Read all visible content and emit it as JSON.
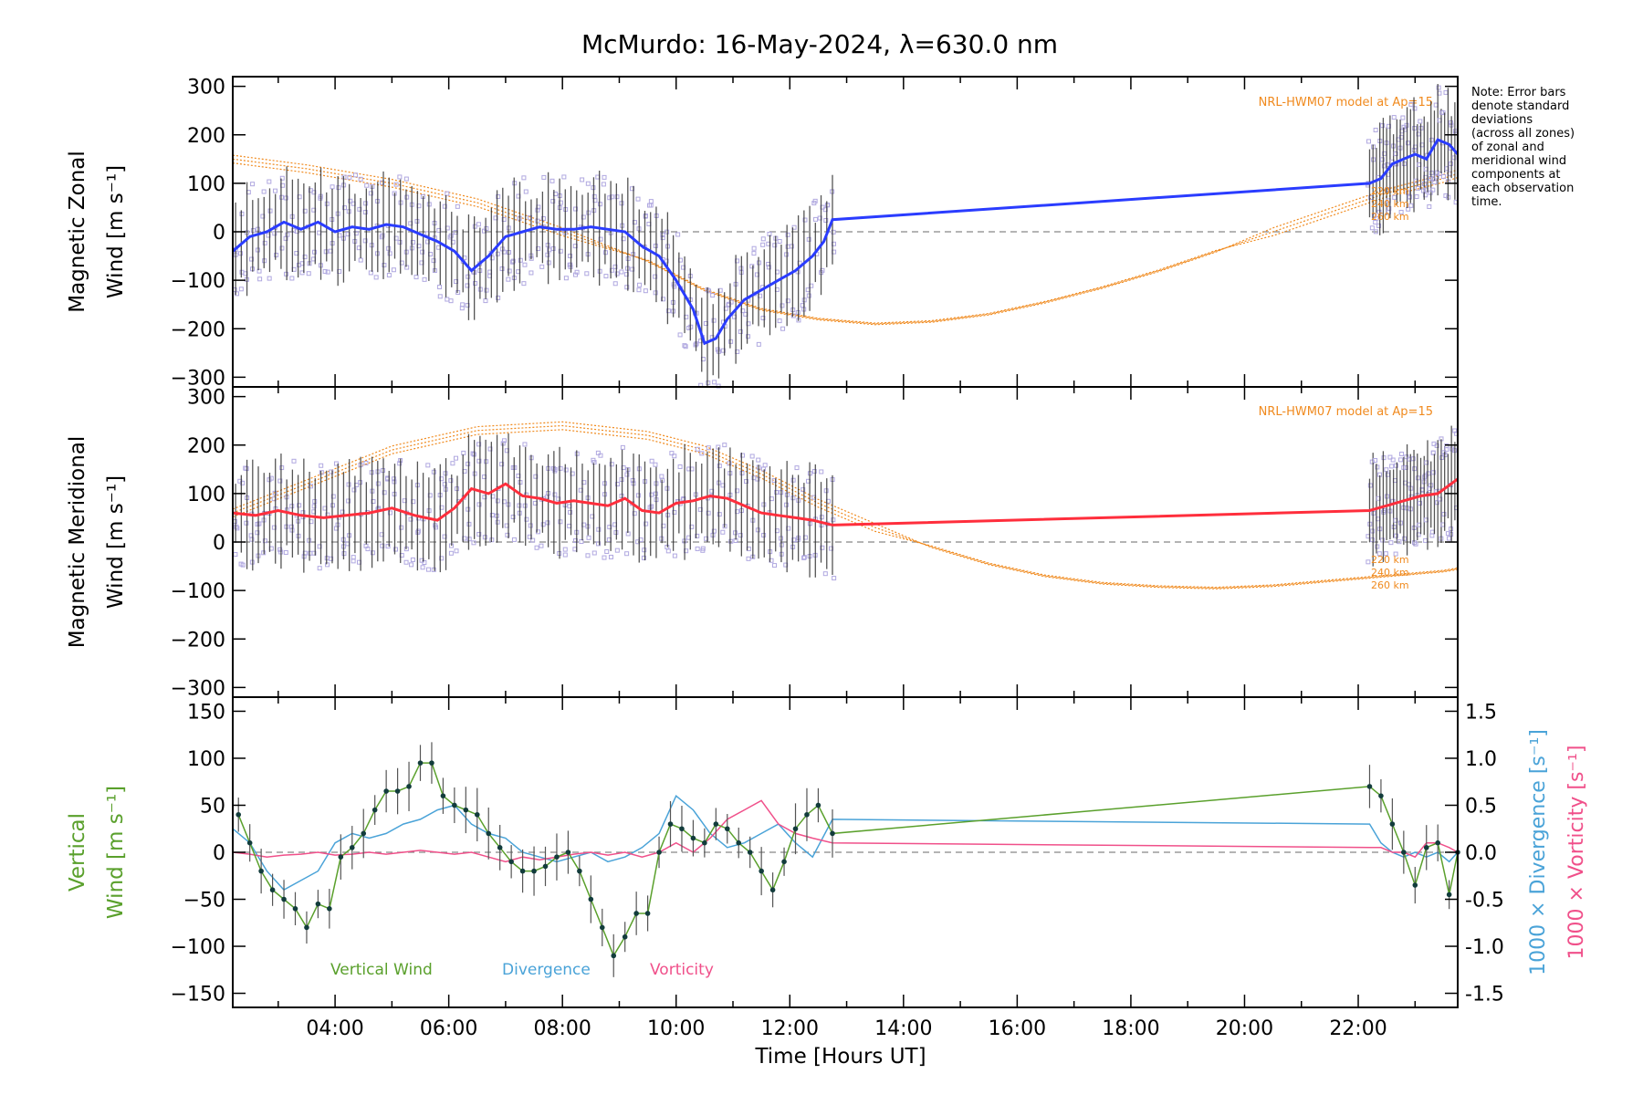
{
  "title": "McMurdo: 16-May-2024, λ=630.0 nm",
  "xlabel": "Time [Hours UT]",
  "note_lines": [
    "Note: Error bars",
    "denote standard",
    "deviations",
    "(across all zones)",
    "of zonal and",
    "meridional wind",
    "components at",
    "each observation",
    "time."
  ],
  "model_label": "NRL-HWM07 model at Ap=15",
  "altitude_labels": [
    "220 km",
    "240 km",
    "260 km"
  ],
  "colors": {
    "zonal": "#2a3cff",
    "meridional": "#ff2e3c",
    "model": "#f08a1e",
    "vertical": "#5aa02c",
    "divergence": "#4aa3d8",
    "vorticity": "#f0508a",
    "scatter": "#b0a8e0",
    "errorbar": "#2b2b2b",
    "zero": "#888888"
  },
  "chart_data": [
    {
      "type": "line",
      "id": "zonal",
      "ylabel_lines": [
        "Magnetic Zonal",
        "Wind [m s⁻¹]"
      ],
      "ylim": [
        -320,
        320
      ],
      "yticks": [
        -300,
        -200,
        -100,
        0,
        100,
        200,
        300
      ],
      "xlim": [
        2.2,
        23.75
      ],
      "xtick_labels": [
        "04:00",
        "06:00",
        "08:00",
        "10:00",
        "12:00",
        "14:00",
        "16:00",
        "18:00",
        "20:00",
        "22:00"
      ],
      "xtick_hours": [
        4,
        6,
        8,
        10,
        12,
        14,
        16,
        18,
        20,
        22
      ],
      "series": [
        {
          "x": [
            2.2,
            2.5,
            2.8,
            3.1,
            3.4,
            3.7,
            4.0,
            4.3,
            4.6,
            4.9,
            5.2,
            5.5,
            5.8,
            6.1,
            6.4,
            6.7,
            7.0,
            7.3,
            7.6,
            7.9,
            8.2,
            8.5,
            8.8,
            9.1,
            9.4,
            9.7,
            10.0,
            10.3,
            10.5,
            10.7,
            10.9,
            11.2,
            11.5,
            11.8,
            12.1,
            12.4,
            12.6,
            12.75,
            22.2,
            22.4,
            22.6,
            22.8,
            23.0,
            23.2,
            23.4,
            23.6,
            23.75
          ],
          "values": [
            -40,
            -10,
            0,
            20,
            5,
            20,
            0,
            10,
            5,
            15,
            10,
            -5,
            -20,
            -40,
            -80,
            -50,
            -10,
            0,
            10,
            5,
            5,
            10,
            5,
            0,
            -30,
            -50,
            -100,
            -160,
            -230,
            -220,
            -180,
            -140,
            -120,
            -100,
            -80,
            -50,
            -20,
            25,
            100,
            110,
            140,
            150,
            160,
            150,
            190,
            180,
            160
          ]
        },
        {
          "x": [
            2.2,
            3.5,
            5.0,
            6.5,
            8.0,
            9.5,
            10.5,
            11.5,
            12.5,
            13.5,
            14.5,
            15.5,
            16.5,
            17.5,
            18.5,
            19.5,
            20.5,
            21.5,
            22.5,
            23.5,
            23.75
          ],
          "values": [
            150,
            130,
            100,
            60,
            0,
            -60,
            -120,
            -160,
            -180,
            -190,
            -185,
            -170,
            -145,
            -115,
            -80,
            -40,
            0,
            40,
            80,
            110,
            120
          ]
        }
      ]
    },
    {
      "type": "line",
      "id": "meridional",
      "ylabel_lines": [
        "Magnetic Meridional",
        "Wind [m s⁻¹]"
      ],
      "ylim": [
        -320,
        320
      ],
      "yticks": [
        -300,
        -200,
        -100,
        0,
        100,
        200,
        300
      ],
      "xlim": [
        2.2,
        23.75
      ],
      "series": [
        {
          "x": [
            2.2,
            2.6,
            3.0,
            3.4,
            3.8,
            4.2,
            4.6,
            5.0,
            5.4,
            5.8,
            6.1,
            6.4,
            6.7,
            7.0,
            7.3,
            7.6,
            7.9,
            8.2,
            8.5,
            8.8,
            9.1,
            9.4,
            9.7,
            10.0,
            10.3,
            10.6,
            10.9,
            11.2,
            11.5,
            11.8,
            12.1,
            12.4,
            12.75,
            22.2,
            22.5,
            22.8,
            23.1,
            23.4,
            23.75
          ],
          "values": [
            60,
            55,
            65,
            55,
            50,
            55,
            60,
            70,
            55,
            45,
            70,
            110,
            100,
            120,
            95,
            90,
            80,
            85,
            80,
            75,
            90,
            65,
            60,
            80,
            85,
            95,
            90,
            75,
            60,
            55,
            50,
            45,
            35,
            65,
            75,
            85,
            95,
            100,
            130
          ]
        },
        {
          "x": [
            2.2,
            3.5,
            5.0,
            6.5,
            8.0,
            9.5,
            10.5,
            11.5,
            12.5,
            13.5,
            14.5,
            15.5,
            16.5,
            17.5,
            18.5,
            19.5,
            20.5,
            21.5,
            22.5,
            23.5,
            23.75
          ],
          "values": [
            60,
            120,
            190,
            230,
            240,
            220,
            190,
            140,
            80,
            30,
            -10,
            -45,
            -70,
            -85,
            -92,
            -95,
            -90,
            -80,
            -70,
            -60,
            -55
          ]
        }
      ]
    },
    {
      "type": "line",
      "id": "vertical",
      "ylabel_lines": [
        "Vertical",
        "Wind [m s⁻¹]"
      ],
      "ylim": [
        -165,
        165
      ],
      "yticks": [
        -150,
        -100,
        -50,
        0,
        50,
        100,
        150
      ],
      "y2label_lines": [
        "1000 × Divergence [s⁻¹]",
        "1000 × Vorticity [s⁻¹]"
      ],
      "y2lim": [
        -1.65,
        1.65
      ],
      "y2ticks": [
        -1.5,
        -1.0,
        -0.5,
        0.0,
        0.5,
        1.0,
        1.5
      ],
      "xlim": [
        2.2,
        23.75
      ],
      "series": [
        {
          "name": "Vertical Wind",
          "x": [
            2.3,
            2.5,
            2.7,
            2.9,
            3.1,
            3.3,
            3.5,
            3.7,
            3.9,
            4.1,
            4.3,
            4.5,
            4.7,
            4.9,
            5.1,
            5.3,
            5.5,
            5.7,
            5.9,
            6.1,
            6.3,
            6.5,
            6.7,
            6.9,
            7.1,
            7.3,
            7.5,
            7.7,
            7.9,
            8.1,
            8.3,
            8.5,
            8.7,
            8.9,
            9.1,
            9.3,
            9.5,
            9.7,
            9.9,
            10.1,
            10.3,
            10.5,
            10.7,
            10.9,
            11.1,
            11.3,
            11.5,
            11.7,
            11.9,
            12.1,
            12.3,
            12.5,
            12.75,
            22.2,
            22.4,
            22.6,
            22.8,
            23.0,
            23.2,
            23.4,
            23.6,
            23.75
          ],
          "values": [
            40,
            10,
            -20,
            -40,
            -50,
            -60,
            -80,
            -55,
            -60,
            -5,
            5,
            20,
            45,
            65,
            65,
            70,
            95,
            95,
            60,
            50,
            45,
            40,
            20,
            5,
            -10,
            -20,
            -20,
            -15,
            -5,
            0,
            -20,
            -50,
            -80,
            -110,
            -90,
            -65,
            -65,
            0,
            30,
            25,
            15,
            10,
            30,
            25,
            10,
            0,
            -20,
            -40,
            -10,
            25,
            40,
            50,
            20,
            70,
            60,
            30,
            0,
            -35,
            5,
            10,
            -45,
            0
          ]
        },
        {
          "name": "Divergence",
          "x": [
            2.2,
            2.5,
            2.8,
            3.1,
            3.4,
            3.7,
            4.0,
            4.3,
            4.6,
            4.9,
            5.2,
            5.5,
            5.8,
            6.1,
            6.4,
            6.7,
            7.0,
            7.3,
            7.6,
            7.9,
            8.2,
            8.5,
            8.8,
            9.1,
            9.4,
            9.7,
            10.0,
            10.3,
            10.6,
            10.9,
            11.2,
            11.5,
            11.8,
            12.1,
            12.4,
            12.75,
            22.2,
            22.4,
            22.6,
            22.8,
            23.0,
            23.2,
            23.4,
            23.6,
            23.75
          ],
          "values": [
            0.25,
            0.1,
            -0.2,
            -0.4,
            -0.3,
            -0.2,
            0.1,
            0.2,
            0.15,
            0.2,
            0.3,
            0.35,
            0.45,
            0.5,
            0.3,
            0.2,
            0.15,
            0.0,
            -0.05,
            -0.1,
            -0.05,
            0.0,
            -0.1,
            -0.05,
            0.05,
            0.2,
            0.6,
            0.45,
            0.2,
            0.05,
            0.1,
            0.2,
            0.3,
            0.1,
            -0.05,
            0.35,
            0.3,
            0.1,
            0.0,
            -0.05,
            0.0,
            -0.05,
            0.0,
            -0.1,
            0.0
          ]
        },
        {
          "name": "Vorticity",
          "x": [
            2.2,
            2.5,
            2.8,
            3.1,
            3.4,
            3.7,
            4.0,
            4.3,
            4.6,
            4.9,
            5.2,
            5.5,
            5.8,
            6.1,
            6.4,
            6.7,
            7.0,
            7.3,
            7.6,
            7.9,
            8.2,
            8.5,
            8.8,
            9.1,
            9.4,
            9.7,
            10.0,
            10.3,
            10.6,
            10.9,
            11.2,
            11.5,
            11.8,
            12.1,
            12.4,
            12.75,
            22.2,
            22.4,
            22.6,
            22.8,
            23.0,
            23.2,
            23.4,
            23.6,
            23.75
          ],
          "values": [
            0.0,
            -0.02,
            -0.05,
            -0.03,
            -0.02,
            0.0,
            -0.03,
            -0.02,
            0.0,
            -0.02,
            0.0,
            0.02,
            0.0,
            -0.02,
            0.0,
            -0.05,
            -0.1,
            -0.05,
            -0.08,
            -0.05,
            -0.02,
            0.0,
            -0.03,
            0.0,
            -0.05,
            0.0,
            0.1,
            0.0,
            0.15,
            0.35,
            0.45,
            0.55,
            0.3,
            0.2,
            0.15,
            0.1,
            0.05,
            0.05,
            0.0,
            0.0,
            -0.05,
            0.1,
            0.1,
            0.05,
            0.0
          ]
        }
      ]
    }
  ]
}
